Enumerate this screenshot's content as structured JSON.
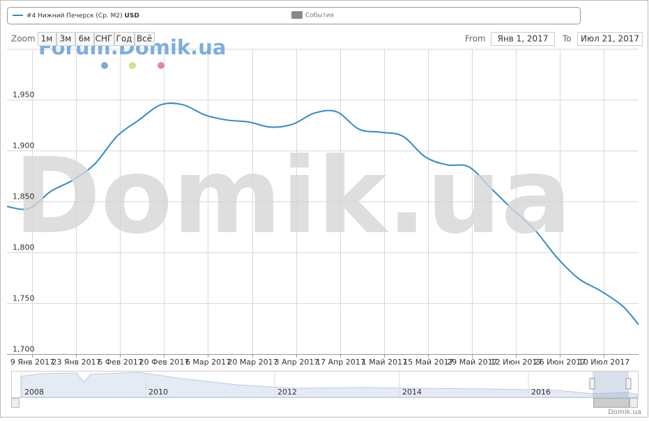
{
  "chart_data": {
    "type": "line",
    "legend": {
      "currency": "USD",
      "events": "События"
    },
    "watermark": "Forum.Domik.ua",
    "background_text": "Domik.ua",
    "credit": "Domik.ua",
    "range_selector": {
      "zoom": "Zoom",
      "buttons": [
        "1м",
        "3м",
        "6м",
        "СНГ",
        "Год",
        "Всё"
      ],
      "from": "From",
      "from_value": "Янв 1, 2017",
      "to": "To",
      "to_value": "Июл 21, 2017"
    },
    "navigator": {
      "labels": [
        "2008",
        "2010",
        "2012",
        "2014",
        "2016"
      ]
    },
    "x": [
      "2017-01-01",
      "2017-01-08",
      "2017-01-15",
      "2017-01-22",
      "2017-01-29",
      "2017-02-05",
      "2017-02-12",
      "2017-02-19",
      "2017-02-26",
      "2017-03-05",
      "2017-03-12",
      "2017-03-19",
      "2017-03-26",
      "2017-04-02",
      "2017-04-09",
      "2017-04-16",
      "2017-04-23",
      "2017-04-30",
      "2017-05-07",
      "2017-05-14",
      "2017-05-21",
      "2017-05-28",
      "2017-06-04",
      "2017-06-11",
      "2017-06-18",
      "2017-06-25",
      "2017-07-02",
      "2017-07-09",
      "2017-07-16",
      "2017-07-21"
    ],
    "series": [
      {
        "name": "#4 Нижний Печерск (Ср. М2)",
        "color": "#2f8bc9",
        "values": [
          1845,
          1843,
          1860,
          1871,
          1887,
          1914,
          1930,
          1945,
          1945,
          1935,
          1930,
          1928,
          1923,
          1926,
          1937,
          1938,
          1921,
          1918,
          1914,
          1894,
          1886,
          1884,
          1863,
          1842,
          1822,
          1795,
          1774,
          1762,
          1747,
          1729
        ]
      }
    ],
    "xlim": [
      "2017-01-01",
      "2017-07-21"
    ],
    "xticks": [
      {
        "value": "2017-01-09",
        "label": "9 Янв 2017"
      },
      {
        "value": "2017-01-23",
        "label": "23 Янв 2017"
      },
      {
        "value": "2017-02-06",
        "label": "6 Фев 2017"
      },
      {
        "value": "2017-02-20",
        "label": "20 Фев 2017"
      },
      {
        "value": "2017-03-06",
        "label": "6 Мар 2017"
      },
      {
        "value": "2017-03-20",
        "label": "20 Мар 2017"
      },
      {
        "value": "2017-04-03",
        "label": "3 Апр 2017"
      },
      {
        "value": "2017-04-17",
        "label": "17 Апр 2017"
      },
      {
        "value": "2017-05-01",
        "label": "1 Май 2017"
      },
      {
        "value": "2017-05-15",
        "label": "15 Май 2017"
      },
      {
        "value": "2017-05-29",
        "label": "29 Май 2017"
      },
      {
        "value": "2017-06-12",
        "label": "12 Июн 2017"
      },
      {
        "value": "2017-06-26",
        "label": "26 Июн 2017"
      },
      {
        "value": "2017-07-10",
        "label": "10 Июл 2017"
      }
    ],
    "ylim": [
      1700,
      2000
    ],
    "yticks": [
      {
        "value": 1700,
        "label": "1,700"
      },
      {
        "value": 1750,
        "label": "1,750"
      },
      {
        "value": 1800,
        "label": "1,800"
      },
      {
        "value": 1850,
        "label": "1,850"
      },
      {
        "value": 1900,
        "label": "1,900"
      },
      {
        "value": 1950,
        "label": "1,950"
      }
    ],
    "grid": true
  }
}
